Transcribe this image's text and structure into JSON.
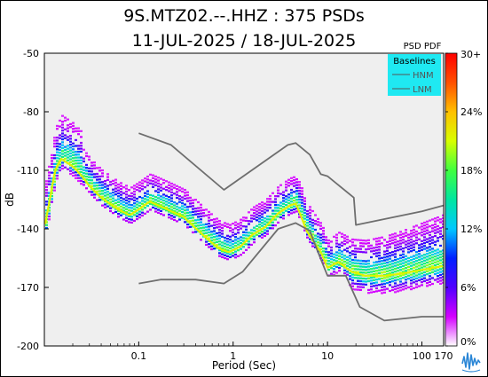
{
  "header": {
    "title": "9S.MTZ02.--.HHZ : 375 PSDs",
    "subtitle": "11-JUL-2025 / 18-JUL-2025"
  },
  "chart_data": {
    "type": "heatmap",
    "xlabel": "Period (Sec)",
    "ylabel": "dB",
    "x_scale": "log",
    "xlim": [
      0.01,
      170
    ],
    "ylim": [
      -200,
      -50
    ],
    "x_ticks": [
      0.1,
      1,
      10,
      100,
      170
    ],
    "x_tick_labels": [
      "0.1",
      "1",
      "10",
      "100",
      "170"
    ],
    "y_ticks": [
      -50,
      -80,
      -110,
      -140,
      -170,
      -200
    ],
    "y_tick_labels": [
      "-50",
      "-80",
      "-110",
      "-140",
      "-170",
      "-200"
    ],
    "colorbar": {
      "title": "PSD PDF",
      "ticks": [
        "30+",
        "24%",
        "18%",
        "12%",
        "6%",
        "0%"
      ],
      "tick_values": [
        30,
        24,
        18,
        12,
        6,
        0
      ],
      "colors": [
        "#ffffff",
        "#d400ff",
        "#5000ff",
        "#0020ff",
        "#00c8ff",
        "#00e6a0",
        "#40ff40",
        "#d8ff00",
        "#ffc000",
        "#ff5000",
        "#ff0000"
      ]
    },
    "legend": {
      "title": "Baselines",
      "placement": "top-right",
      "entries": [
        "HNM",
        "LNM"
      ]
    },
    "baselines": [
      {
        "name": "HNM",
        "period": [
          0.1,
          0.22,
          0.8,
          3.8,
          4.6,
          6.5,
          8.5,
          10,
          19,
          20,
          100,
          170
        ],
        "db": [
          -91,
          -97,
          -120,
          -97,
          -96,
          -102,
          -112,
          -113,
          -124,
          -138,
          -131,
          -128
        ]
      },
      {
        "name": "LNM",
        "period": [
          0.1,
          0.17,
          0.4,
          0.8,
          1.26,
          3,
          4.6,
          6.5,
          7.8,
          10,
          15.6,
          22,
          40,
          100,
          170
        ],
        "db": [
          -168,
          -166,
          -166,
          -168,
          -162,
          -140,
          -137,
          -141,
          -151,
          -164,
          -164,
          -180,
          -187,
          -185,
          -185
        ]
      }
    ],
    "mode_curve": {
      "period": [
        0.01,
        0.013,
        0.015,
        0.02,
        0.025,
        0.03,
        0.04,
        0.06,
        0.08,
        0.1,
        0.13,
        0.2,
        0.3,
        0.5,
        0.7,
        0.9,
        1.2,
        1.6,
        2.2,
        3,
        4,
        4.6,
        5.2,
        6,
        7,
        8.5,
        10,
        13,
        18,
        25,
        40,
        60,
        100,
        170
      ],
      "db": [
        -140,
        -110,
        -104,
        -108,
        -113,
        -118,
        -124,
        -130,
        -133,
        -130,
        -126,
        -130,
        -134,
        -144,
        -150,
        -152,
        -149,
        -143,
        -139,
        -132,
        -128,
        -127,
        -133,
        -141,
        -146,
        -152,
        -160,
        -157,
        -162,
        -164,
        -164,
        -163,
        -161,
        -159
      ]
    },
    "scatter_upper_db_offset": 14,
    "dominant_pdf_percent": 30
  }
}
